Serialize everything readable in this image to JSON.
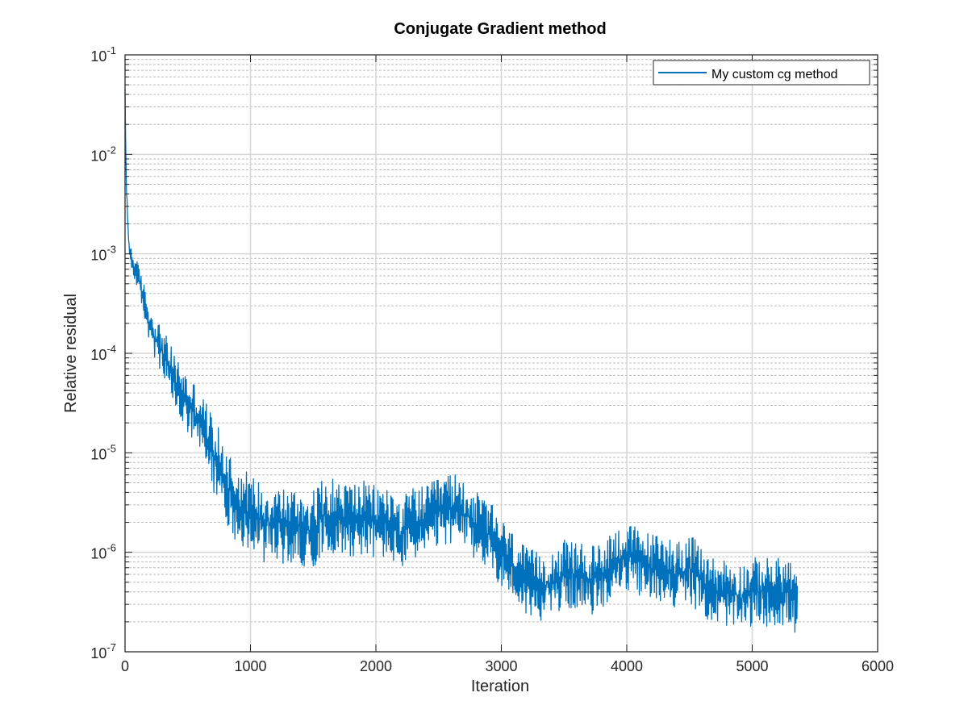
{
  "chart_data": {
    "type": "line",
    "title": "Conjugate Gradient method",
    "xlabel": "Iteration",
    "ylabel": "Relative residual",
    "xlim": [
      0,
      6000
    ],
    "ylim": [
      1e-07,
      0.1
    ],
    "yscale": "log",
    "grid": true,
    "minor_grid": true,
    "legend_position": "top-right",
    "x_ticks": [
      "0",
      "1000",
      "2000",
      "3000",
      "4000",
      "5000",
      "6000"
    ],
    "y_ticks": [
      {
        "base": "10",
        "exp": "-7"
      },
      {
        "base": "10",
        "exp": "-6"
      },
      {
        "base": "10",
        "exp": "-5"
      },
      {
        "base": "10",
        "exp": "-4"
      },
      {
        "base": "10",
        "exp": "-3"
      },
      {
        "base": "10",
        "exp": "-2"
      },
      {
        "base": "10",
        "exp": "-1"
      }
    ],
    "series": [
      {
        "name": "My custom cg method",
        "color": "#0072bd",
        "n_iterations": 5360,
        "trend": {
          "x": [
            0,
            10,
            30,
            60,
            100,
            150,
            200,
            300,
            400,
            500,
            600,
            700,
            800,
            900,
            1000,
            1100,
            1200,
            1300,
            1400,
            1500,
            1600,
            1700,
            1800,
            1900,
            2000,
            2100,
            2200,
            2300,
            2400,
            2500,
            2600,
            2700,
            2800,
            2900,
            3000,
            3100,
            3200,
            3300,
            3400,
            3500,
            3600,
            3700,
            3800,
            3900,
            4000,
            4100,
            4200,
            4300,
            4400,
            4500,
            4600,
            4700,
            4800,
            4900,
            5000,
            5100,
            5200,
            5300,
            5360
          ],
          "y": [
            0.04,
            0.005,
            0.0012,
            0.0008,
            0.0006,
            0.00035,
            0.00018,
            0.0001,
            5e-05,
            3e-05,
            2e-05,
            1e-05,
            5e-06,
            3e-06,
            2.5e-06,
            2e-06,
            2e-06,
            1.8e-06,
            1.8e-06,
            1.7e-06,
            2.5e-06,
            2.2e-06,
            2.2e-06,
            2.2e-06,
            2e-06,
            2e-06,
            1.5e-06,
            2e-06,
            2e-06,
            2.5e-06,
            2.8e-06,
            2.5e-06,
            1.8e-06,
            1.5e-06,
            1e-06,
            7e-07,
            5e-07,
            4.5e-07,
            5e-07,
            6e-07,
            6e-07,
            5e-07,
            6e-07,
            8e-07,
            9e-07,
            8e-07,
            7e-07,
            7e-07,
            6e-07,
            7e-07,
            5e-07,
            4e-07,
            4e-07,
            3.5e-07,
            4e-07,
            4e-07,
            4e-07,
            4e-07,
            3e-07
          ]
        },
        "noise_amplitude_decades": {
          "x": [
            0,
            100,
            300,
            600,
            800,
            1000,
            3000,
            5360
          ],
          "y": [
            0.05,
            0.12,
            0.22,
            0.3,
            0.35,
            0.35,
            0.3,
            0.3
          ]
        }
      }
    ]
  }
}
